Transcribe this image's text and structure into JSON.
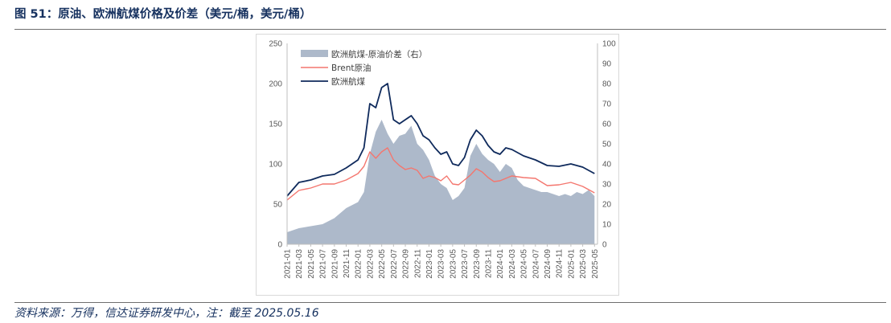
{
  "figure": {
    "title": "图 51：原油、欧洲航煤价格及价差（美元/桶，美元/桶）",
    "source": "资料来源：万得，信达证券研发中心，注：截至 2025.05.16"
  },
  "chart_data": {
    "type": "line",
    "title": "",
    "xlabel": "",
    "ylabel": "",
    "x_ticks": [
      "2021-01",
      "2021-03",
      "2021-05",
      "2021-07",
      "2021-09",
      "2021-11",
      "2022-01",
      "2022-03",
      "2022-05",
      "2022-07",
      "2022-09",
      "2022-11",
      "2023-01",
      "2023-03",
      "2023-05",
      "2023-07",
      "2023-09",
      "2023-11",
      "2024-01",
      "2024-03",
      "2024-05",
      "2024-07",
      "2024-09",
      "2024-11",
      "2025-01",
      "2025-03",
      "2025-05"
    ],
    "y_left": {
      "ylim": [
        0,
        250
      ],
      "ticks": [
        0,
        50,
        100,
        150,
        200,
        250
      ]
    },
    "y_right": {
      "ylim": [
        0,
        100
      ],
      "ticks": [
        0,
        10,
        20,
        30,
        40,
        50,
        60,
        70,
        80,
        90,
        100
      ]
    },
    "legend_placement": "top-left",
    "series": [
      {
        "name": "欧洲航煤-原油价差（右）",
        "kind": "area",
        "axis": "right",
        "color": "#adb9ca",
        "x": [
          "2021-01",
          "2021-03",
          "2021-05",
          "2021-07",
          "2021-09",
          "2021-11",
          "2022-01",
          "2022-02",
          "2022-03",
          "2022-04",
          "2022-05",
          "2022-06",
          "2022-07",
          "2022-08",
          "2022-09",
          "2022-10",
          "2022-11",
          "2022-12",
          "2023-01",
          "2023-02",
          "2023-03",
          "2023-04",
          "2023-05",
          "2023-06",
          "2023-07",
          "2023-08",
          "2023-09",
          "2023-10",
          "2023-11",
          "2023-12",
          "2024-01",
          "2024-02",
          "2024-03",
          "2024-04",
          "2024-05",
          "2024-06",
          "2024-07",
          "2024-08",
          "2024-09",
          "2024-10",
          "2024-11",
          "2024-12",
          "2025-01",
          "2025-02",
          "2025-03",
          "2025-04",
          "2025-05"
        ],
        "values": [
          6,
          8,
          9,
          10,
          13,
          18,
          21,
          26,
          45,
          56,
          62,
          55,
          50,
          54,
          55,
          59,
          50,
          47,
          42,
          34,
          30,
          28,
          22,
          24,
          28,
          44,
          50,
          45,
          42,
          40,
          36,
          40,
          38,
          32,
          29,
          28,
          27,
          26,
          26,
          25,
          24,
          25,
          24,
          26,
          25,
          27,
          24
        ]
      },
      {
        "name": "Brent原油",
        "kind": "line",
        "axis": "left",
        "color": "#f4766e",
        "x": [
          "2021-01",
          "2021-03",
          "2021-05",
          "2021-07",
          "2021-09",
          "2021-11",
          "2022-01",
          "2022-02",
          "2022-03",
          "2022-04",
          "2022-05",
          "2022-06",
          "2022-07",
          "2022-08",
          "2022-09",
          "2022-10",
          "2022-11",
          "2022-12",
          "2023-01",
          "2023-02",
          "2023-03",
          "2023-04",
          "2023-05",
          "2023-06",
          "2023-07",
          "2023-08",
          "2023-09",
          "2023-10",
          "2023-11",
          "2023-12",
          "2024-01",
          "2024-02",
          "2024-03",
          "2024-05",
          "2024-07",
          "2024-09",
          "2024-11",
          "2025-01",
          "2025-03",
          "2025-05"
        ],
        "values": [
          55,
          67,
          70,
          75,
          75,
          80,
          88,
          97,
          115,
          107,
          115,
          120,
          105,
          98,
          93,
          95,
          92,
          82,
          85,
          83,
          79,
          85,
          75,
          74,
          80,
          86,
          94,
          90,
          83,
          78,
          79,
          82,
          85,
          83,
          82,
          73,
          74,
          77,
          72,
          64
        ]
      },
      {
        "name": "欧洲航煤",
        "kind": "line",
        "axis": "left",
        "color": "#0f2a5c",
        "x": [
          "2021-01",
          "2021-03",
          "2021-05",
          "2021-07",
          "2021-09",
          "2021-11",
          "2022-01",
          "2022-02",
          "2022-03",
          "2022-04",
          "2022-05",
          "2022-06",
          "2022-07",
          "2022-08",
          "2022-09",
          "2022-10",
          "2022-11",
          "2022-12",
          "2023-01",
          "2023-02",
          "2023-03",
          "2023-04",
          "2023-05",
          "2023-06",
          "2023-07",
          "2023-08",
          "2023-09",
          "2023-10",
          "2023-11",
          "2023-12",
          "2024-01",
          "2024-02",
          "2024-03",
          "2024-05",
          "2024-07",
          "2024-09",
          "2024-11",
          "2025-01",
          "2025-03",
          "2025-05"
        ],
        "values": [
          60,
          77,
          80,
          85,
          87,
          95,
          105,
          120,
          175,
          170,
          195,
          200,
          155,
          150,
          155,
          160,
          150,
          135,
          130,
          120,
          112,
          115,
          100,
          98,
          108,
          130,
          142,
          135,
          123,
          115,
          112,
          120,
          118,
          110,
          105,
          98,
          97,
          100,
          96,
          88
        ]
      }
    ]
  }
}
